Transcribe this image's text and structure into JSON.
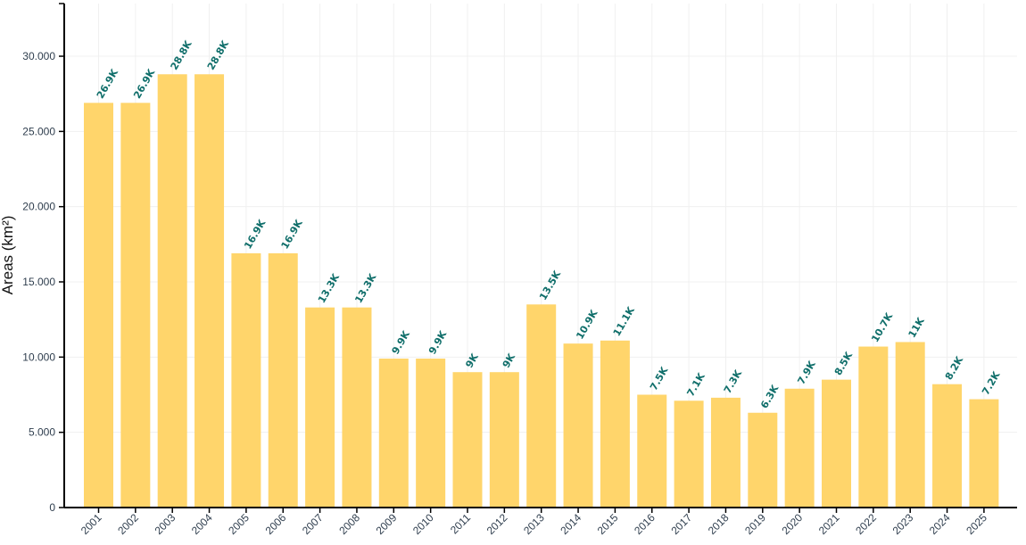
{
  "chart_data": {
    "type": "bar",
    "ylabel": "Areas (km²)",
    "xlabel": "",
    "title": "",
    "ylim": [
      0,
      33500
    ],
    "grid": true,
    "bar_color": "#ffd56b",
    "label_color": "#0f6e6a",
    "y_ticks": [
      {
        "value": 0,
        "label": "0"
      },
      {
        "value": 5000,
        "label": "5.000"
      },
      {
        "value": 10000,
        "label": "10.000"
      },
      {
        "value": 15000,
        "label": "15.000"
      },
      {
        "value": 20000,
        "label": "20.000"
      },
      {
        "value": 25000,
        "label": "25.000"
      },
      {
        "value": 30000,
        "label": "30.000"
      }
    ],
    "categories": [
      "2001",
      "2002",
      "2003",
      "2004",
      "2005",
      "2006",
      "2007",
      "2008",
      "2009",
      "2010",
      "2011",
      "2012",
      "2013",
      "2014",
      "2015",
      "2016",
      "2017",
      "2018",
      "2019",
      "2020",
      "2021",
      "2022",
      "2023",
      "2024",
      "2025"
    ],
    "values": [
      26900,
      26900,
      28800,
      28800,
      16900,
      16900,
      13300,
      13300,
      9900,
      9900,
      9000,
      9000,
      13500,
      10900,
      11100,
      7500,
      7100,
      7300,
      6300,
      7900,
      8500,
      10700,
      11000,
      8200,
      7200
    ],
    "data_labels": [
      "26.9K",
      "26.9K",
      "28.8K",
      "28.8K",
      "16.9K",
      "16.9K",
      "13.3K",
      "13.3K",
      "9.9K",
      "9.9K",
      "9K",
      "9K",
      "13.5K",
      "10.9K",
      "11.1K",
      "7.5K",
      "7.1K",
      "7.3K",
      "6.3K",
      "7.9K",
      "8.5K",
      "10.7K",
      "11K",
      "8.2K",
      "7.2K"
    ]
  }
}
